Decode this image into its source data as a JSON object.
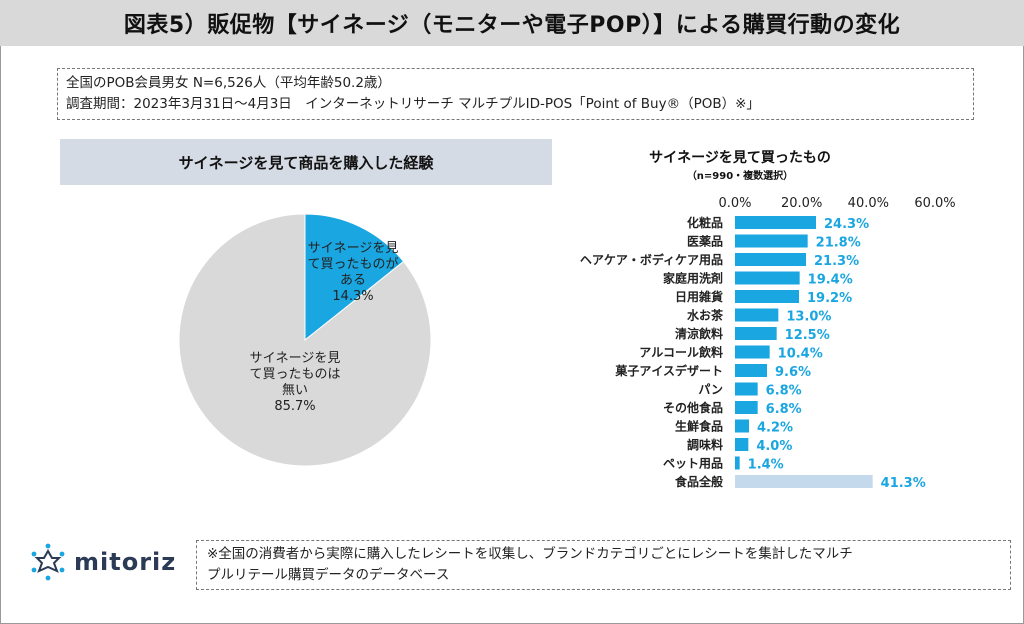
{
  "title": "図表5）販促物【サイネージ（モニターや電子POP）】による購買行動の変化",
  "meta": {
    "line1": "全国のPOB会員男女 N=6,526人（平均年齢50.2歳）",
    "line2": "調査期間：2023年3月31日～4月3日　インターネットリサーチ マルチプルID-POS「Point of Buy®（POB）※」"
  },
  "pie": {
    "title": "サイネージを見て商品を購入した経験",
    "slices": [
      {
        "label": "サイネージを見て買ったものがある",
        "label_lines": [
          "サイネージを見",
          "て買ったものが",
          "ある"
        ],
        "value": 14.3,
        "value_text": "14.3%",
        "color": "#1aa6e0"
      },
      {
        "label": "サイネージを見て買ったものは無い",
        "label_lines": [
          "サイネージを見",
          "て買ったものは",
          "無い"
        ],
        "value": 85.7,
        "value_text": "85.7%",
        "color": "#d9d9d9"
      }
    ]
  },
  "chart_data": {
    "type": "bar",
    "title": "サイネージを見て買ったもの",
    "subtitle": "（n=990・複数選択）",
    "orientation": "horizontal",
    "xlim": [
      0,
      60
    ],
    "x_ticks": [
      "0.0%",
      "20.0%",
      "40.0%",
      "60.0%"
    ],
    "categories": [
      "化粧品",
      "医薬品",
      "ヘアケア・ボディケア用品",
      "家庭用洗剤",
      "日用雑貨",
      "水お茶",
      "清涼飲料",
      "アルコール飲料",
      "菓子アイスデザート",
      "パン",
      "その他食品",
      "生鮮食品",
      "調味料",
      "ペット用品",
      "食品全般"
    ],
    "values": [
      24.3,
      21.8,
      21.3,
      19.4,
      19.2,
      13.0,
      12.5,
      10.4,
      9.6,
      6.8,
      6.8,
      4.2,
      4.0,
      1.4,
      41.3
    ],
    "value_labels": [
      "24.3%",
      "21.8%",
      "21.3%",
      "19.4%",
      "19.2%",
      "13.0%",
      "12.5%",
      "10.4%",
      "9.6%",
      "6.8%",
      "6.8%",
      "4.2%",
      "4.0%",
      "1.4%",
      "41.3%"
    ],
    "colors": [
      "#1aa6e0",
      "#1aa6e0",
      "#1aa6e0",
      "#1aa6e0",
      "#1aa6e0",
      "#1aa6e0",
      "#1aa6e0",
      "#1aa6e0",
      "#1aa6e0",
      "#1aa6e0",
      "#1aa6e0",
      "#1aa6e0",
      "#1aa6e0",
      "#1aa6e0",
      "#c5d9ec"
    ],
    "value_label_color": "#1aa6e0"
  },
  "footer": {
    "logo_text": "mitoriz",
    "note_line1": "※全国の消費者から実際に購入したレシートを収集し、ブランドカテゴリごとにレシートを集計したマルチ",
    "note_line2": "プルリテール購買データのデータベース"
  }
}
